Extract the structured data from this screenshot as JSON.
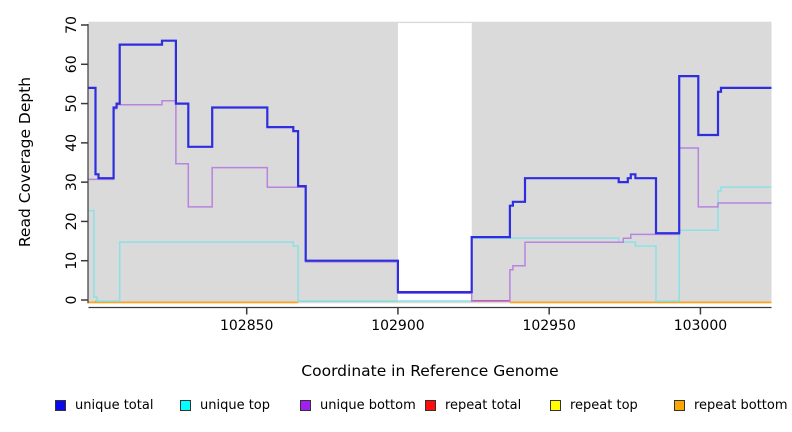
{
  "colors": {
    "plot_background": "#DADADA",
    "masked_band": "#FFFFFF",
    "axis": "#3a3a3a"
  },
  "legend": {
    "items": [
      {
        "label": "unique total",
        "color": "#0909EE"
      },
      {
        "label": "unique top",
        "color": "#00FFFF"
      },
      {
        "label": "unique bottom",
        "color": "#A020F0"
      },
      {
        "label": "repeat total",
        "color": "#FF0D0D"
      },
      {
        "label": "repeat top",
        "color": "#FFFF00"
      },
      {
        "label": "repeat bottom",
        "color": "#FFA500"
      }
    ]
  },
  "chart_data": {
    "type": "line",
    "subtype": "step-coverage-plot",
    "title": "",
    "xlabel": "Coordinate in Reference Genome",
    "ylabel": "Read Coverage Depth",
    "xlim": [
      102797.7,
      103023.5
    ],
    "ylim": [
      0,
      70
    ],
    "grid": false,
    "legend_position": "bottom",
    "x_ticks": [
      102850,
      102900,
      102950,
      103000
    ],
    "x_tick_labels": [
      "102850",
      "102900",
      "102950",
      "103000"
    ],
    "y_ticks": [
      0,
      10,
      20,
      30,
      40,
      50,
      60,
      70
    ],
    "y_tick_labels": [
      "0",
      "10",
      "20",
      "30",
      "40",
      "50",
      "60",
      "70"
    ],
    "masked_region": {
      "from": 102900,
      "to": 102924.4
    },
    "series": [
      {
        "name": "unique total",
        "color": "#2E2EDF",
        "w": 2.2,
        "dy": 0,
        "draw": "steps",
        "steps": [
          [
            102797.7,
            54
          ],
          [
            102800,
            32
          ],
          [
            102801,
            31
          ],
          [
            102806,
            49
          ],
          [
            102807,
            50
          ],
          [
            102808,
            65
          ],
          [
            102822,
            66
          ],
          [
            102826.6,
            50
          ],
          [
            102830.7,
            39
          ],
          [
            102838.6,
            49
          ],
          [
            102856.8,
            44
          ],
          [
            102865.4,
            43
          ],
          [
            102867,
            29
          ],
          [
            102869.5,
            10
          ],
          [
            102900,
            2
          ],
          [
            102924.4,
            16
          ],
          [
            102937,
            24
          ],
          [
            102938,
            25
          ],
          [
            102942,
            31
          ],
          [
            102973,
            30
          ],
          [
            102976,
            31
          ],
          [
            102977,
            32
          ],
          [
            102978.5,
            31
          ],
          [
            102985.3,
            17
          ],
          [
            102993,
            57
          ],
          [
            102999.3,
            42
          ],
          [
            103005.8,
            53
          ],
          [
            103006.8,
            54
          ]
        ]
      },
      {
        "name": "unique top",
        "color": "#8AE1E6",
        "w": 1.5,
        "dy": 1.0,
        "draw": "steps",
        "steps": [
          [
            102797.7,
            23
          ],
          [
            102799.5,
            1
          ],
          [
            102800.5,
            0
          ],
          [
            102808,
            15
          ],
          [
            102865.4,
            14
          ],
          [
            102867,
            0
          ],
          [
            102924.4,
            16
          ],
          [
            102973,
            15
          ],
          [
            102978.5,
            14
          ],
          [
            102985.3,
            0
          ],
          [
            102993,
            18
          ],
          [
            103005.8,
            28
          ],
          [
            103006.8,
            29
          ]
        ]
      },
      {
        "name": "unique bottom",
        "color": "#B884DF",
        "w": 1.5,
        "dy": 1.2,
        "draw": "steps",
        "steps": [
          [
            102797.7,
            31
          ],
          [
            102806,
            49
          ],
          [
            102807,
            50
          ],
          [
            102822,
            51
          ],
          [
            102826.6,
            35
          ],
          [
            102830.7,
            24
          ],
          [
            102838.6,
            34
          ],
          [
            102856.8,
            29
          ],
          [
            102869.5,
            10
          ],
          [
            102900,
            2
          ],
          [
            102924.4,
            0
          ],
          [
            102937,
            8
          ],
          [
            102938,
            9
          ],
          [
            102942,
            15
          ],
          [
            102974.5,
            16
          ],
          [
            102977,
            17
          ],
          [
            102993,
            39
          ],
          [
            102999.3,
            24
          ],
          [
            103005.8,
            25
          ]
        ]
      },
      {
        "name": "repeat total",
        "color": "#E03B3B",
        "draw": "baseline",
        "steps": [
          [
            102797.7,
            0
          ]
        ]
      },
      {
        "name": "repeat top",
        "color": "#FFFF00",
        "draw": "hidden",
        "steps": [
          [
            102797.7,
            0
          ]
        ]
      },
      {
        "name": "repeat bottom",
        "color": "#FFA41C",
        "draw": "baseline",
        "steps": [
          [
            102797.7,
            0
          ]
        ]
      }
    ],
    "baseline_segments": [
      {
        "series": "unique top at zero",
        "color": "#7FD67F",
        "dy": 1.2,
        "w": 1.5,
        "ranges": [
          [
            102799.8,
            102808
          ],
          [
            102867,
            102900
          ],
          [
            102985.3,
            102993
          ]
        ]
      },
      {
        "series": "repeat total",
        "color": "#E03B3B",
        "dy": 0.8,
        "w": 1.5,
        "ranges": [
          [
            102924.4,
            102937
          ]
        ]
      },
      {
        "series": "repeat bottom",
        "color": "#FFA41C",
        "dy": 2.4,
        "w": 1.8,
        "ranges": [
          [
            102797.7,
            102867
          ],
          [
            102937,
            103023.5
          ]
        ]
      }
    ]
  }
}
